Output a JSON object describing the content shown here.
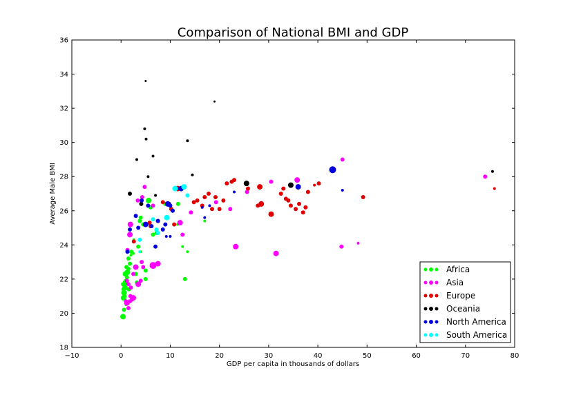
{
  "chart_data": {
    "type": "scatter",
    "title": "Comparison of National BMI and GDP",
    "xlabel": "GDP per capita in thousands of dollars",
    "ylabel": "Average Male BMI",
    "xlim": [
      -10,
      80
    ],
    "ylim": [
      18,
      36
    ],
    "xticks": [
      -10,
      0,
      10,
      20,
      30,
      40,
      50,
      60,
      70,
      80
    ],
    "yticks": [
      18,
      20,
      22,
      24,
      26,
      28,
      30,
      32,
      34,
      36
    ],
    "grid": false,
    "legend_position": "bottom-right",
    "series": [
      {
        "name": "Africa",
        "color": "#00ff00",
        "points": [
          [
            0.4,
            19.8,
            4
          ],
          [
            0.6,
            20.2,
            3
          ],
          [
            0.5,
            20.9,
            4
          ],
          [
            0.7,
            21.0,
            3
          ],
          [
            0.6,
            21.2,
            4
          ],
          [
            0.5,
            21.4,
            3
          ],
          [
            0.8,
            21.5,
            4
          ],
          [
            0.4,
            21.7,
            3
          ],
          [
            0.9,
            21.8,
            4
          ],
          [
            1.0,
            21.9,
            3
          ],
          [
            1.2,
            22.1,
            3
          ],
          [
            0.9,
            22.3,
            4
          ],
          [
            1.3,
            22.4,
            4
          ],
          [
            1.5,
            22.6,
            3
          ],
          [
            1.8,
            22.9,
            3
          ],
          [
            1.1,
            22.7,
            3
          ],
          [
            1.5,
            23.2,
            3
          ],
          [
            2.0,
            23.4,
            2
          ],
          [
            2.1,
            23.6,
            3
          ],
          [
            2.5,
            23.5,
            2
          ],
          [
            3.5,
            23.9,
            3
          ],
          [
            4.0,
            23.6,
            2
          ],
          [
            5.0,
            22.5,
            3
          ],
          [
            5.0,
            22.0,
            3
          ],
          [
            3.0,
            22.3,
            3
          ],
          [
            3.2,
            21.8,
            3
          ],
          [
            3.8,
            25.4,
            3
          ],
          [
            4.5,
            25.2,
            3
          ],
          [
            5.6,
            26.6,
            4
          ],
          [
            6.0,
            26.2,
            3
          ],
          [
            4.0,
            25.6,
            3
          ],
          [
            6.5,
            24.6,
            3
          ],
          [
            7.2,
            24.7,
            3
          ],
          [
            9.0,
            26.4,
            3
          ],
          [
            11.5,
            25.2,
            2
          ],
          [
            11.6,
            26.4,
            3
          ],
          [
            12.5,
            23.9,
            2
          ],
          [
            13.0,
            22.0,
            3
          ],
          [
            13.5,
            23.6,
            2
          ],
          [
            17.0,
            25.4,
            2
          ],
          [
            1.6,
            21.4,
            3
          ],
          [
            1.0,
            20.5,
            2
          ],
          [
            2.6,
            24.3,
            2
          ]
        ]
      },
      {
        "name": "Asia",
        "color": "#ff00ff",
        "points": [
          [
            1.0,
            20.7,
            3
          ],
          [
            1.5,
            20.3,
            3
          ],
          [
            1.2,
            20.6,
            4
          ],
          [
            1.8,
            20.7,
            3
          ],
          [
            2.2,
            20.8,
            3
          ],
          [
            2.5,
            20.9,
            4
          ],
          [
            1.9,
            21.0,
            3
          ],
          [
            2.0,
            21.5,
            3
          ],
          [
            1.5,
            21.7,
            3
          ],
          [
            1.2,
            21.9,
            3
          ],
          [
            3.5,
            21.7,
            4
          ],
          [
            4.0,
            21.9,
            3
          ],
          [
            2.5,
            22.3,
            3
          ],
          [
            3.0,
            22.7,
            4
          ],
          [
            4.2,
            23.0,
            3
          ],
          [
            4.5,
            22.7,
            3
          ],
          [
            6.5,
            22.8,
            5
          ],
          [
            7.5,
            22.9,
            4
          ],
          [
            1.3,
            23.7,
            3
          ],
          [
            1.9,
            25.2,
            4
          ],
          [
            1.8,
            24.6,
            4
          ],
          [
            4.8,
            27.4,
            3
          ],
          [
            3.4,
            26.6,
            3
          ],
          [
            4.3,
            26.8,
            3
          ],
          [
            6.5,
            26.3,
            3
          ],
          [
            12.5,
            24.6,
            3
          ],
          [
            12.0,
            25.3,
            4
          ],
          [
            14.2,
            25.9,
            3
          ],
          [
            19.3,
            26.5,
            3
          ],
          [
            22.2,
            26.1,
            3
          ],
          [
            23.3,
            23.9,
            4
          ],
          [
            25.6,
            27.1,
            3
          ],
          [
            30.5,
            27.7,
            3
          ],
          [
            31.5,
            23.5,
            4
          ],
          [
            35.8,
            27.8,
            4
          ],
          [
            44.8,
            23.9,
            3
          ],
          [
            45.0,
            29.0,
            3
          ],
          [
            48.2,
            24.1,
            2
          ],
          [
            74.0,
            28.0,
            3
          ]
        ]
      },
      {
        "name": "Europe",
        "color": "#e00000",
        "points": [
          [
            2.6,
            24.2,
            3
          ],
          [
            5.8,
            25.3,
            3
          ],
          [
            6.0,
            25.1,
            3
          ],
          [
            7.5,
            25.4,
            3
          ],
          [
            8.5,
            26.5,
            3
          ],
          [
            9.8,
            26.4,
            3
          ],
          [
            10.2,
            26.1,
            3
          ],
          [
            10.8,
            25.2,
            3
          ],
          [
            11.5,
            27.3,
            4
          ],
          [
            14.8,
            26.5,
            3
          ],
          [
            15.5,
            26.6,
            3
          ],
          [
            16.5,
            26.3,
            3
          ],
          [
            17.0,
            26.8,
            3
          ],
          [
            17.8,
            27.0,
            3
          ],
          [
            18.5,
            26.1,
            3
          ],
          [
            19.2,
            26.8,
            3
          ],
          [
            20.0,
            26.1,
            3
          ],
          [
            20.8,
            26.6,
            3
          ],
          [
            21.5,
            27.6,
            3
          ],
          [
            22.5,
            27.7,
            3
          ],
          [
            23.0,
            27.8,
            3
          ],
          [
            25.8,
            27.3,
            3
          ],
          [
            27.8,
            26.3,
            3
          ],
          [
            28.2,
            27.4,
            4
          ],
          [
            28.5,
            26.4,
            4
          ],
          [
            30.5,
            25.8,
            4
          ],
          [
            32.5,
            27.0,
            3
          ],
          [
            33.0,
            27.3,
            3
          ],
          [
            33.5,
            26.7,
            3
          ],
          [
            34.0,
            26.6,
            3
          ],
          [
            34.5,
            26.3,
            3
          ],
          [
            35.5,
            26.1,
            3
          ],
          [
            36.2,
            26.4,
            3
          ],
          [
            37.0,
            25.9,
            3
          ],
          [
            37.5,
            26.2,
            3
          ],
          [
            38.0,
            27.1,
            3
          ],
          [
            39.3,
            27.5,
            2
          ],
          [
            40.2,
            27.6,
            3
          ],
          [
            49.2,
            26.8,
            3
          ],
          [
            75.9,
            27.3,
            2
          ]
        ]
      },
      {
        "name": "Oceania",
        "color": "#000000",
        "points": [
          [
            1.8,
            27.0,
            3
          ],
          [
            3.2,
            29.0,
            2
          ],
          [
            4.1,
            26.4,
            3
          ],
          [
            4.8,
            30.8,
            2
          ],
          [
            5.1,
            30.2,
            2
          ],
          [
            5.5,
            28.0,
            2
          ],
          [
            6.5,
            29.2,
            2
          ],
          [
            7.0,
            26.9,
            2
          ],
          [
            13.5,
            30.1,
            2
          ],
          [
            14.5,
            28.1,
            2
          ],
          [
            19.0,
            32.4,
            1.5
          ],
          [
            5.0,
            33.6,
            1.5
          ],
          [
            25.5,
            27.6,
            4
          ],
          [
            34.5,
            27.5,
            4
          ],
          [
            75.5,
            28.3,
            2
          ]
        ]
      },
      {
        "name": "North America",
        "color": "#0000dd",
        "points": [
          [
            1.3,
            23.6,
            3
          ],
          [
            1.8,
            24.9,
            3
          ],
          [
            3.0,
            25.7,
            3
          ],
          [
            3.5,
            25.0,
            3
          ],
          [
            4.2,
            26.6,
            3
          ],
          [
            5.0,
            25.2,
            4
          ],
          [
            5.5,
            26.3,
            3
          ],
          [
            6.2,
            25.1,
            3
          ],
          [
            7.0,
            23.9,
            3
          ],
          [
            7.5,
            25.4,
            3
          ],
          [
            8.5,
            24.9,
            3
          ],
          [
            9.0,
            25.2,
            3
          ],
          [
            9.2,
            24.5,
            2
          ],
          [
            10.0,
            24.5,
            2
          ],
          [
            9.5,
            26.4,
            4
          ],
          [
            10.0,
            26.3,
            3
          ],
          [
            10.5,
            26.0,
            3
          ],
          [
            12.2,
            27.3,
            4
          ],
          [
            16.5,
            26.2,
            2
          ],
          [
            17.0,
            25.6,
            2
          ],
          [
            18.0,
            26.3,
            2
          ],
          [
            23.0,
            27.1,
            2
          ],
          [
            36.0,
            27.4,
            4
          ],
          [
            43.0,
            28.4,
            5
          ],
          [
            45.0,
            27.2,
            2
          ]
        ]
      },
      {
        "name": "South America",
        "color": "#00ffff",
        "points": [
          [
            3.8,
            24.3,
            3
          ],
          [
            6.5,
            25.5,
            3
          ],
          [
            7.2,
            24.9,
            3
          ],
          [
            7.5,
            24.7,
            3
          ],
          [
            9.3,
            25.6,
            4
          ],
          [
            11.0,
            27.3,
            4
          ],
          [
            12.8,
            27.4,
            4
          ],
          [
            13.5,
            26.9,
            3
          ],
          [
            3.8,
            23.6,
            2
          ]
        ]
      }
    ]
  }
}
